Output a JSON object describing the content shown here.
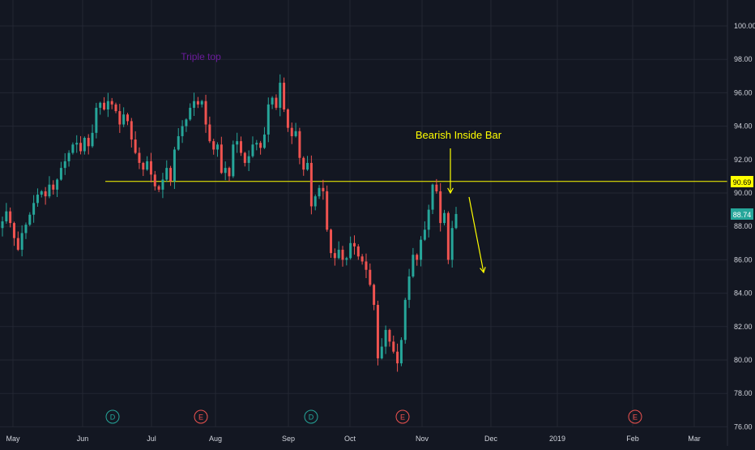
{
  "chart_data": {
    "type": "candlestick",
    "title": "",
    "xlabel": "",
    "ylabel": "",
    "ylim": [
      76,
      101.5
    ],
    "y_ticks": [
      100.0,
      98.0,
      96.0,
      94.0,
      92.0,
      90.0,
      88.0,
      86.0,
      84.0,
      82.0,
      80.0,
      78.0,
      76.0
    ],
    "x_ticks": [
      "May",
      "Jun",
      "Jul",
      "Aug",
      "Sep",
      "Oct",
      "Nov",
      "Dec",
      "2019",
      "Feb",
      "Mar"
    ],
    "grid": true,
    "colors": {
      "background": "#131722",
      "grid": "#232733",
      "up": "#26a69a",
      "down": "#ef5350",
      "annotation": "#ffff00",
      "triple_top_text": "#6a1b9a",
      "axis_text": "#d1d4dc"
    },
    "closes": [
      88.3,
      88.9,
      88.2,
      87.3,
      86.6,
      87.6,
      88.1,
      88.7,
      89.4,
      89.9,
      90.1,
      89.8,
      90.5,
      90.2,
      90.8,
      91.5,
      91.9,
      92.4,
      92.9,
      93.0,
      92.5,
      93.3,
      92.8,
      93.6,
      95.1,
      95.4,
      95.0,
      95.5,
      95.3,
      94.9,
      94.1,
      94.7,
      94.3,
      93.2,
      92.4,
      91.8,
      91.4,
      91.9,
      91.1,
      90.4,
      90.2,
      90.8,
      91.5,
      90.7,
      92.6,
      93.4,
      94.0,
      94.4,
      95.1,
      95.5,
      95.3,
      95.5,
      94.1,
      93.1,
      92.6,
      92.9,
      91.2,
      91.5,
      91.0,
      92.9,
      93.1,
      92.4,
      91.8,
      92.2,
      92.9,
      93.0,
      92.7,
      93.5,
      95.3,
      95.7,
      95.1,
      96.6,
      95.0,
      93.9,
      93.4,
      93.7,
      92.1,
      91.4,
      91.8,
      89.2,
      89.8,
      90.3,
      90.1,
      87.8,
      86.4,
      86.1,
      86.6,
      86.0,
      86.1,
      87.0,
      86.8,
      86.2,
      85.9,
      85.4,
      84.5,
      83.3,
      80.1,
      80.8,
      81.8,
      81.1,
      80.5,
      79.8,
      81.2,
      83.6,
      85.0,
      86.3,
      86.0,
      87.2,
      87.8,
      89.0,
      90.5,
      90.1,
      88.2,
      88.8,
      86.0,
      87.9,
      88.74
    ],
    "events": [
      {
        "label": "D"
      },
      {
        "label": "E"
      },
      {
        "label": "D"
      },
      {
        "label": "E"
      },
      {
        "label": "E"
      }
    ]
  },
  "labels": {
    "price_level": "90.69",
    "last_price": "88.74"
  },
  "annotations": {
    "triple_top": "Triple top",
    "bearish_inside_bar": "Bearish Inside Bar"
  }
}
